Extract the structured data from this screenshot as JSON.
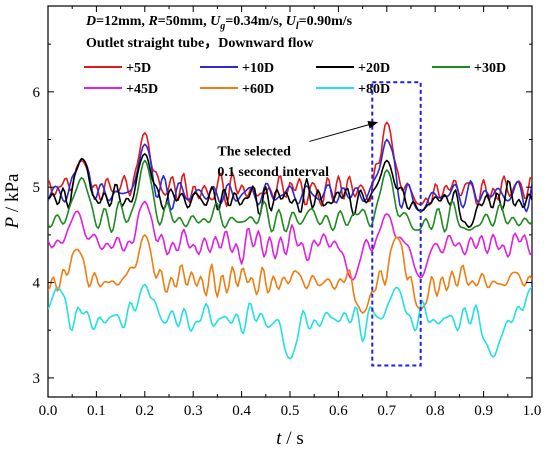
{
  "chart_data": {
    "type": "line",
    "title": "",
    "conditions": {
      "line1": {
        "D_sym": "D",
        "D_val": "=12mm, ",
        "R_sym": "R",
        "R_val": "=50mm, ",
        "Ug_sym": "U",
        "Ug_sub": "g",
        "Ug_val": "=0.34m/s, ",
        "Ul_sym": "U",
        "Ul_sub": "l",
        "Ul_val": "=0.90m/s"
      },
      "line2": "Outlet straight tube，Downward flow"
    },
    "xlabel": {
      "symbol": "t",
      "unit": " / s"
    },
    "ylabel": {
      "symbol": "P",
      "unit": " / kPa"
    },
    "xlim": [
      0.0,
      1.0
    ],
    "ylim": [
      2.8,
      6.9
    ],
    "xticks": [
      "0.0",
      "0.1",
      "0.2",
      "0.3",
      "0.4",
      "0.5",
      "0.6",
      "0.7",
      "0.8",
      "0.9",
      "1.0"
    ],
    "yticks": [
      "3",
      "4",
      "5",
      "6"
    ],
    "legend_placement": "top",
    "series": [
      {
        "name": "+5D",
        "color": "#e31a1c",
        "base": 4.97,
        "amp": 0.18,
        "seed": 1,
        "anchors": [
          [
            0.07,
            5.28
          ],
          [
            0.2,
            5.57
          ],
          [
            0.7,
            5.68
          ],
          [
            0.77,
            4.82
          ]
        ]
      },
      {
        "name": "+10D",
        "color": "#2b2bd6",
        "base": 4.93,
        "amp": 0.17,
        "seed": 2,
        "anchors": [
          [
            0.07,
            5.3
          ],
          [
            0.2,
            5.45
          ],
          [
            0.7,
            5.5
          ],
          [
            0.77,
            4.75
          ]
        ]
      },
      {
        "name": "+20D",
        "color": "#000000",
        "base": 4.88,
        "amp": 0.15,
        "seed": 3,
        "anchors": [
          [
            0.07,
            5.3
          ],
          [
            0.2,
            5.35
          ],
          [
            0.7,
            5.28
          ],
          [
            0.77,
            4.75
          ],
          [
            0.87,
            4.58
          ]
        ]
      },
      {
        "name": "+30D",
        "color": "#1f8a1f",
        "base": 4.67,
        "amp": 0.16,
        "seed": 4,
        "anchors": [
          [
            0.07,
            5.1
          ],
          [
            0.2,
            5.28
          ],
          [
            0.7,
            5.18
          ],
          [
            0.76,
            4.55
          ],
          [
            0.87,
            4.55
          ]
        ]
      },
      {
        "name": "+45D",
        "color": "#e020e0",
        "base": 4.4,
        "amp": 0.16,
        "seed": 5,
        "anchors": [
          [
            0.06,
            4.75
          ],
          [
            0.2,
            4.85
          ],
          [
            0.7,
            4.72
          ],
          [
            0.63,
            4.03
          ],
          [
            0.77,
            4.05
          ]
        ]
      },
      {
        "name": "+60D",
        "color": "#f07d12",
        "base": 4.02,
        "amp": 0.16,
        "seed": 6,
        "anchors": [
          [
            0.06,
            4.35
          ],
          [
            0.2,
            4.5
          ],
          [
            0.72,
            4.48
          ],
          [
            0.65,
            3.68
          ],
          [
            0.77,
            3.72
          ]
        ]
      },
      {
        "name": "+80D",
        "color": "#22e0e0",
        "base": 3.62,
        "amp": 0.16,
        "seed": 7,
        "anchors": [
          [
            0.02,
            3.95
          ],
          [
            0.2,
            3.98
          ],
          [
            0.5,
            3.2
          ],
          [
            0.72,
            3.95
          ],
          [
            0.92,
            3.22
          ],
          [
            1.0,
            3.95
          ]
        ]
      }
    ],
    "annotation": {
      "line1": "The selected",
      "line2": "0.1 second interval",
      "interval_x": [
        0.67,
        0.77
      ],
      "interval_y": [
        3.13,
        6.1
      ],
      "arrow_from": [
        0.54,
        5.48
      ],
      "arrow_to": [
        0.68,
        5.68
      ],
      "box_color": "#2020e0"
    }
  }
}
